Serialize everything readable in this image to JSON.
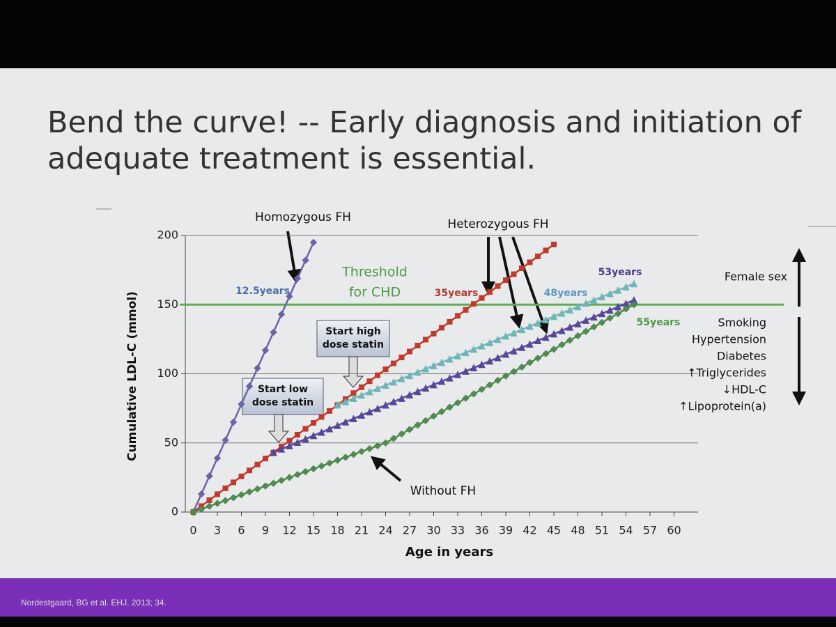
{
  "source": "Nordestgaard, BG et al. EHJ. 2013; 34.",
  "chart_data": {
    "type": "line",
    "title": "Bend the curve! -- Early diagnosis and initiation of adequate treatment is essential.",
    "xlabel": "Age in years",
    "ylabel": "Cumulative LDL-C (mmol)",
    "x": [
      0,
      1,
      2,
      3,
      4,
      5,
      6,
      7,
      8,
      9,
      10,
      11,
      12,
      13,
      14,
      15,
      16,
      17,
      18,
      19,
      20,
      21,
      22,
      23,
      24,
      25,
      26,
      27,
      28,
      29,
      30,
      31,
      32,
      33,
      34,
      35,
      36,
      37,
      38,
      39,
      40,
      41,
      42,
      43,
      44,
      45,
      46,
      47,
      48,
      49,
      50,
      51,
      52,
      53,
      54,
      55
    ],
    "series": [
      {
        "color": "#6a63a8",
        "marker": "diamond",
        "values": [
          0,
          13,
          26,
          39,
          52,
          65,
          78,
          91,
          104,
          117,
          130,
          143,
          156,
          169,
          182,
          195,
          null,
          null,
          null,
          null,
          null,
          null,
          null,
          null,
          null,
          null,
          null,
          null,
          null,
          null,
          null,
          null,
          null,
          null,
          null,
          null,
          null,
          null,
          null,
          null,
          null,
          null,
          null,
          null,
          null,
          null,
          null,
          null,
          null,
          null,
          null,
          null,
          null,
          null,
          null,
          null
        ]
      },
      {
        "color": "#c0392b",
        "marker": "square",
        "values": [
          0,
          4.3,
          8.6,
          12.9,
          17.2,
          21.5,
          25.8,
          30.1,
          34.4,
          38.7,
          43,
          47.3,
          51.6,
          55.9,
          60.2,
          64.5,
          68.8,
          73.1,
          77.4,
          81.7,
          86,
          90.3,
          94.6,
          98.9,
          103.2,
          107.5,
          111.8,
          116.1,
          120.4,
          124.7,
          129,
          133.3,
          137.6,
          141.9,
          146.2,
          150.5,
          154.8,
          159.1,
          163.4,
          167.7,
          172,
          176.3,
          180.6,
          184.9,
          189.2,
          193.5,
          null,
          null,
          null,
          null,
          null,
          null,
          null,
          null,
          null,
          null
        ]
      },
      {
        "color": "#6fb5b8",
        "marker": "triangle",
        "values": [
          null,
          null,
          null,
          null,
          null,
          null,
          null,
          null,
          null,
          null,
          null,
          null,
          null,
          null,
          null,
          null,
          null,
          null,
          77.4,
          79.8,
          82.1,
          84.5,
          86.9,
          89.3,
          91.6,
          94.0,
          96.4,
          98.7,
          101.1,
          103.5,
          105.8,
          108.2,
          110.6,
          113.0,
          115.3,
          117.7,
          120.1,
          122.4,
          124.8,
          127.2,
          129.5,
          131.9,
          134.3,
          136.7,
          139.0,
          141.4,
          143.8,
          146.1,
          148.5,
          150.9,
          153.2,
          155.6,
          158.0,
          160.4,
          162.7,
          165.1
        ]
      },
      {
        "color": "#56479a",
        "marker": "triangle",
        "values": [
          null,
          null,
          null,
          null,
          null,
          null,
          null,
          null,
          null,
          null,
          43,
          45.5,
          47.9,
          50.4,
          52.8,
          55.3,
          57.7,
          60.2,
          62.6,
          65.1,
          67.5,
          70.0,
          72.4,
          74.9,
          77.3,
          79.8,
          82.2,
          84.7,
          87.1,
          89.6,
          92.0,
          94.5,
          96.9,
          99.4,
          101.8,
          104.3,
          106.7,
          109.2,
          111.6,
          114.1,
          116.5,
          119.0,
          121.4,
          123.9,
          126.3,
          128.8,
          131.2,
          133.7,
          136.1,
          138.6,
          141.0,
          143.5,
          145.9,
          148.4,
          150.8,
          153.3
        ]
      },
      {
        "color": "#4f8a4f",
        "marker": "diamond",
        "values": [
          0,
          2.1,
          4.2,
          6.3,
          8.3,
          10.4,
          12.5,
          14.6,
          16.7,
          18.8,
          20.8,
          22.9,
          25.0,
          27.1,
          29.2,
          31.3,
          33.3,
          35.4,
          37.5,
          39.6,
          41.7,
          43.8,
          45.8,
          47.9,
          50.0,
          53.2,
          56.5,
          59.7,
          62.9,
          66.1,
          69.4,
          72.6,
          75.8,
          79.0,
          82.3,
          85.5,
          88.7,
          91.9,
          95.2,
          98.4,
          101.6,
          104.8,
          108.1,
          111.3,
          114.5,
          117.7,
          121.0,
          124.2,
          127.4,
          130.6,
          133.9,
          137.1,
          140.3,
          143.5,
          146.8,
          150.0
        ]
      }
    ],
    "threshold": 150,
    "threshold_color": "#5fae55",
    "xlim": [
      -1,
      63
    ],
    "xticks": [
      0,
      3,
      6,
      9,
      12,
      15,
      18,
      21,
      24,
      27,
      30,
      33,
      36,
      39,
      42,
      45,
      48,
      51,
      54,
      57,
      60
    ],
    "ylim": [
      0,
      200
    ],
    "yticks": [
      0,
      50,
      100,
      150,
      200
    ],
    "grid": true,
    "annotations": [
      "Homozygous FH",
      "Heterozygous FH",
      "Threshold",
      "for CHD",
      "12.5years",
      "35years",
      "48years",
      "53years",
      "55years",
      "Start high",
      "dose statin",
      "Start low",
      "dose statin",
      "Without FH"
    ],
    "risk_up": [
      "Female sex"
    ],
    "risk_down": [
      "Smoking",
      "Hypertension",
      "Diabetes",
      "↑Triglycerides",
      "↓HDL-C",
      "↑Lipoprotein(a)"
    ]
  }
}
